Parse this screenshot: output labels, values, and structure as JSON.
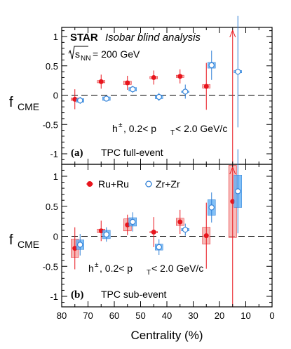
{
  "header": {
    "brand": "STAR",
    "subtitle": "Isobar blind analysis",
    "energy_label": "= 200 GeV",
    "energy_sym_s": "s",
    "energy_sym_sub": "NN"
  },
  "axes": {
    "xlabel": "Centrality (%)",
    "ylabel_main": "f",
    "ylabel_sub": "CME"
  },
  "panels": [
    {
      "letter": "(a)",
      "title": "TPC full-event",
      "cut_main": "h",
      "cut_sup": "±",
      "cut_rest": ", 0.2< p",
      "cut_sub": "T",
      "cut_end": "< 2.0 GeV/c"
    },
    {
      "letter": "(b)",
      "title": "TPC sub-event",
      "cut_main": "h",
      "cut_sup": "±",
      "cut_rest": ", 0.2< p",
      "cut_sub": "T",
      "cut_end": "< 2.0 GeV/c"
    }
  ],
  "legend": {
    "ru": "Ru+Ru",
    "zr": "Zr+Zr"
  },
  "colors": {
    "ru": "#e8141c",
    "ru_box": "#f4a7a4",
    "zr": "#2f7fd6",
    "zr_box": "#63b0f5"
  },
  "chart_data": [
    {
      "type": "scatter",
      "title": "TPC full-event",
      "xlabel": "Centrality (%)",
      "ylabel": "f_CME",
      "xlim": [
        80,
        0
      ],
      "ylim": [
        -1.2,
        1.2
      ],
      "x_ticks": [
        80,
        70,
        60,
        50,
        40,
        30,
        20,
        10,
        0
      ],
      "y_ticks": [
        -1,
        -0.5,
        0,
        0.5,
        1
      ],
      "reference_line": 0,
      "series": [
        {
          "name": "Ru+Ru",
          "marker": "filled-circle",
          "points": [
            {
              "x": 75,
              "y": -0.07,
              "stat": 0.17,
              "sys": 0.02
            },
            {
              "x": 65,
              "y": 0.23,
              "stat": 0.12,
              "sys": 0.02
            },
            {
              "x": 55,
              "y": 0.21,
              "stat": 0.12,
              "sys": 0.03
            },
            {
              "x": 45,
              "y": 0.3,
              "stat": 0.12,
              "sys": 0.02
            },
            {
              "x": 35,
              "y": 0.32,
              "stat": 0.12,
              "sys": 0.02
            },
            {
              "x": 25,
              "y": 0.15,
              "stat": 0.4,
              "sys": 0.03
            },
            {
              "x": 15,
              "y": 1.2,
              "stat": 0.0,
              "sys": 0.0,
              "arrow": true
            }
          ]
        },
        {
          "name": "Zr+Zr",
          "marker": "open-circle",
          "points": [
            {
              "x": 73,
              "y": -0.09,
              "stat": 0.06,
              "sys": 0.03
            },
            {
              "x": 63,
              "y": -0.06,
              "stat": 0.04,
              "sys": 0.03
            },
            {
              "x": 53,
              "y": 0.1,
              "stat": 0.06,
              "sys": 0.03
            },
            {
              "x": 43,
              "y": -0.03,
              "stat": 0.07,
              "sys": 0.03
            },
            {
              "x": 33,
              "y": 0.06,
              "stat": 0.12,
              "sys": 0.01
            },
            {
              "x": 23,
              "y": 0.51,
              "stat": 0.25,
              "sys": 0.05
            },
            {
              "x": 13,
              "y": 0.4,
              "stat": 0.95,
              "sys": 0.02
            }
          ]
        }
      ]
    },
    {
      "type": "scatter",
      "title": "TPC sub-event",
      "xlabel": "Centrality (%)",
      "ylabel": "f_CME",
      "xlim": [
        80,
        0
      ],
      "ylim": [
        -1.2,
        1.2
      ],
      "x_ticks": [
        80,
        70,
        60,
        50,
        40,
        30,
        20,
        10,
        0
      ],
      "y_ticks": [
        -1,
        -0.5,
        0,
        0.5,
        1
      ],
      "reference_line": 0,
      "legend": "top-left",
      "series": [
        {
          "name": "Ru+Ru",
          "marker": "filled-circle",
          "points": [
            {
              "x": 75,
              "y": -0.2,
              "stat": 0.35,
              "sys": 0.15
            },
            {
              "x": 65,
              "y": 0.09,
              "stat": 0.17,
              "sys": 0.03
            },
            {
              "x": 55,
              "y": 0.19,
              "stat": 0.17,
              "sys": 0.1
            },
            {
              "x": 45,
              "y": 0.07,
              "stat": 0.25,
              "sys": 0.01
            },
            {
              "x": 35,
              "y": 0.24,
              "stat": 0.2,
              "sys": 0.06
            },
            {
              "x": 25,
              "y": 0.01,
              "stat": 0.55,
              "sys": 0.14
            },
            {
              "x": 15,
              "y": 0.58,
              "stat": 1.8,
              "sys": 0.6,
              "arrow": true
            }
          ]
        },
        {
          "name": "Zr+Zr",
          "marker": "open-circle",
          "points": [
            {
              "x": 73,
              "y": -0.14,
              "stat": 0.18,
              "sys": 0.08
            },
            {
              "x": 63,
              "y": 0.03,
              "stat": 0.12,
              "sys": 0.07
            },
            {
              "x": 53,
              "y": 0.24,
              "stat": 0.16,
              "sys": 0.07
            },
            {
              "x": 43,
              "y": -0.18,
              "stat": 0.13,
              "sys": 0.05
            },
            {
              "x": 33,
              "y": 0.11,
              "stat": 0.1,
              "sys": 0.02
            },
            {
              "x": 23,
              "y": 0.48,
              "stat": 0.25,
              "sys": 0.13
            },
            {
              "x": 13,
              "y": 0.75,
              "stat": 0.7,
              "sys": 0.27
            }
          ]
        }
      ]
    }
  ]
}
